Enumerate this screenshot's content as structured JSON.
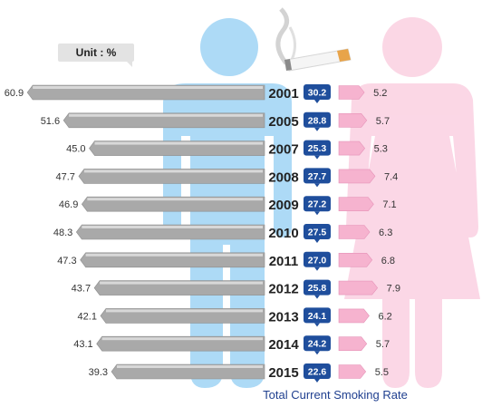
{
  "unit_label": "Unit : %",
  "chart_data": {
    "type": "bar",
    "title": "Total  Current Smoking Rate",
    "categories": [
      "2001",
      "2005",
      "2007",
      "2008",
      "2009",
      "2010",
      "2011",
      "2012",
      "2013",
      "2014",
      "2015"
    ],
    "series": [
      {
        "values": [
          60.9,
          51.6,
          45.0,
          47.7,
          46.9,
          48.3,
          47.3,
          43.7,
          42.1,
          43.1,
          39.3
        ]
      },
      {
        "values": [
          30.2,
          28.8,
          25.3,
          27.7,
          27.2,
          27.5,
          27.0,
          25.8,
          24.1,
          24.2,
          22.6
        ]
      },
      {
        "values": [
          5.2,
          5.7,
          5.3,
          7.4,
          7.1,
          6.3,
          6.8,
          7.9,
          6.2,
          5.7,
          5.5
        ]
      }
    ],
    "colors": {
      "male_bar": "#a9a9a9",
      "male_figure": "#9fd4f5",
      "female_bar": "#f6b3cf",
      "female_figure": "#fbd3e3",
      "total_badge": "#1f4e9c"
    }
  }
}
